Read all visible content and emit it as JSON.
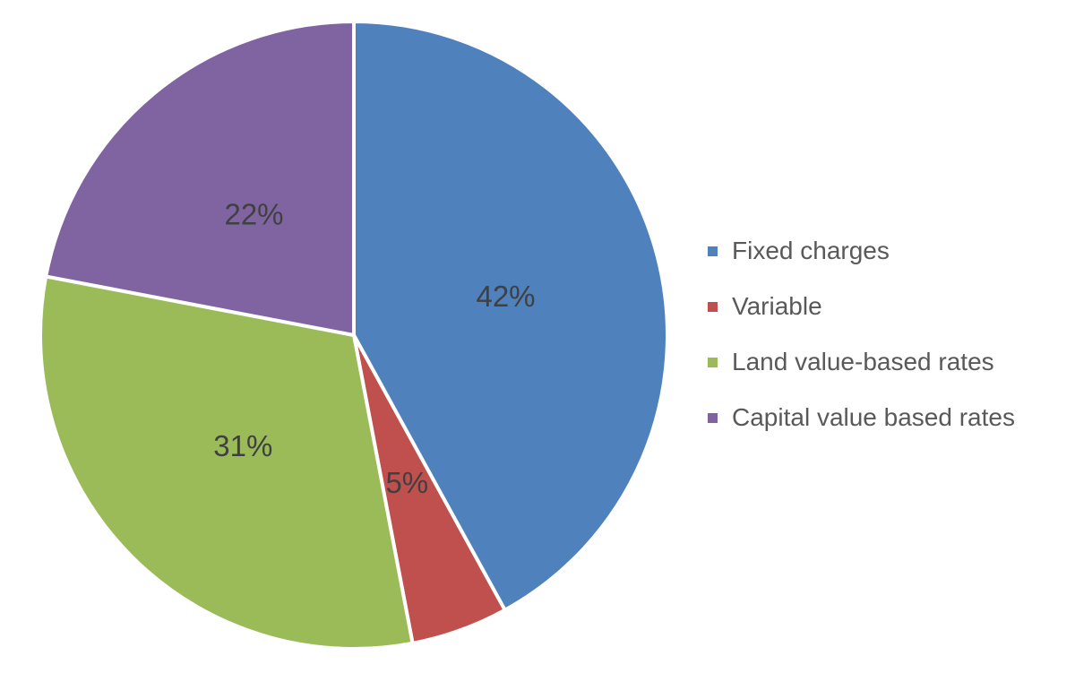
{
  "chart_data": {
    "type": "pie",
    "title": "",
    "categories": [
      "Fixed charges",
      "Variable",
      "Land value-based rates",
      "Capital value based rates"
    ],
    "values": [
      42,
      5,
      31,
      22
    ],
    "slices": [
      {
        "label": "Fixed charges",
        "value": 42,
        "display": "42%",
        "color": "#4F81BD"
      },
      {
        "label": "Variable",
        "value": 5,
        "display": "5%",
        "color": "#C0504D"
      },
      {
        "label": "Land value-based rates",
        "value": 31,
        "display": "31%",
        "color": "#9BBB59"
      },
      {
        "label": "Capital value based rates",
        "value": 22,
        "display": "22%",
        "color": "#8064A2"
      }
    ],
    "start_angle_deg": 0,
    "direction": "clockwise",
    "legend_position": "right",
    "slice_border_color": "#FFFFFF",
    "data_label_color": "#404040",
    "legend_text_color": "#595959",
    "background_color": "#FFFFFF"
  }
}
